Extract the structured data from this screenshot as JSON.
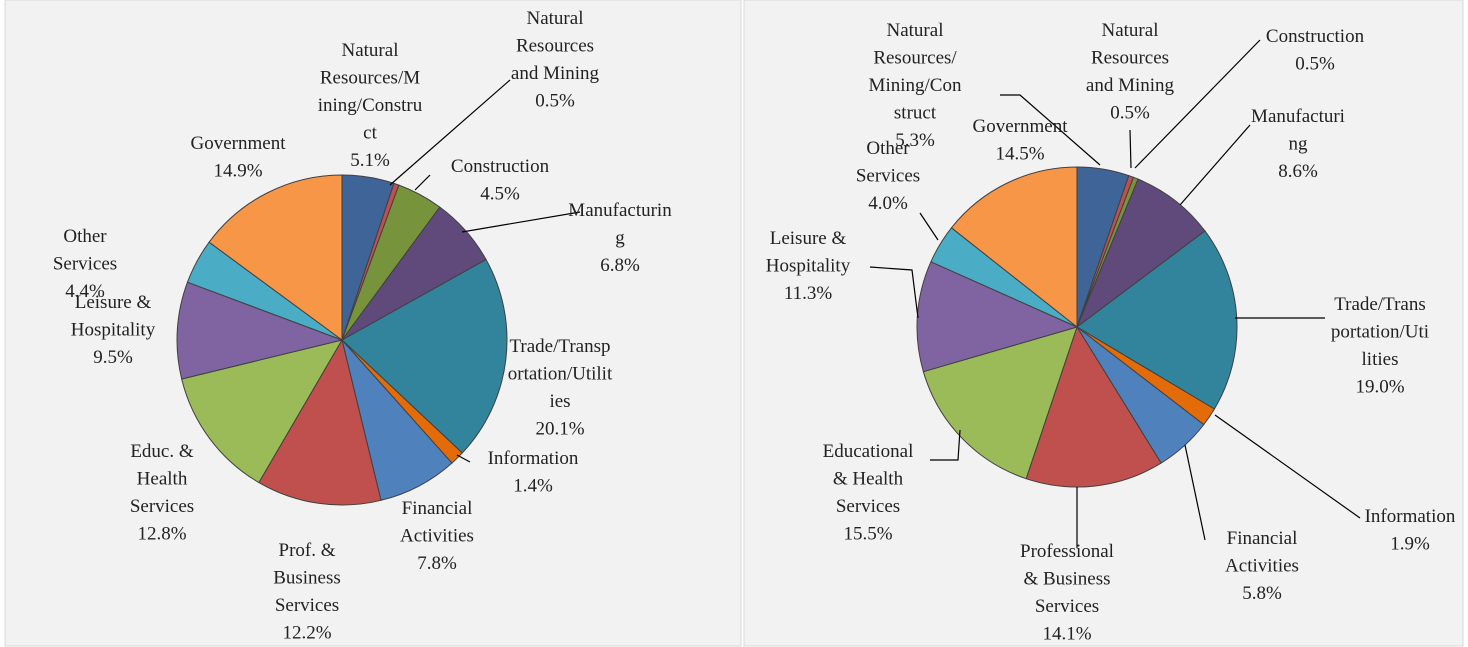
{
  "chart_data": [
    {
      "type": "pie",
      "categories": [
        "Natural\nResources/M\nining/Constru\nct",
        "Natural\nResources\nand Mining",
        "Construction",
        "Manufacturin\ng",
        "Trade/Transp\nortation/Utilit\nies",
        "Information",
        "Financial\nActivities",
        "Prof. &\nBusiness\nServices",
        "Educ. &\nHealth\nServices",
        "Leisure &\nHospitality",
        "Other\nServices",
        "Government"
      ],
      "values": [
        5.1,
        0.5,
        4.5,
        6.8,
        20.1,
        1.4,
        7.8,
        12.2,
        12.8,
        9.5,
        4.4,
        14.9
      ],
      "value_labels": [
        "5.1%",
        "0.5%",
        "4.5%",
        "6.8%",
        "20.1%",
        "1.4%",
        "7.8%",
        "12.2%",
        "12.8%",
        "9.5%",
        "4.4%",
        "14.9%"
      ],
      "colors": [
        "#3e6498",
        "#c0504d",
        "#77933c",
        "#604a7b",
        "#31849b",
        "#e36c09",
        "#4f81bd",
        "#c0504d",
        "#9bbb59",
        "#8064a2",
        "#4bacc6",
        "#f79646"
      ]
    },
    {
      "type": "pie",
      "categories": [
        "Natural\nResources/\nMining/Con\nstruct",
        "Natural\nResources\nand Mining",
        "Construction",
        "Manufacturi\nng",
        "Trade/Trans\nportation/Uti\nlities",
        "Information",
        "Financial\nActivities",
        "Professional\n& Business\nServices",
        "Educational\n& Health\nServices",
        "Leisure &\nHospitality",
        "Other\nServices",
        "Government"
      ],
      "values": [
        5.3,
        0.5,
        0.5,
        8.6,
        19.0,
        1.9,
        5.8,
        14.1,
        15.5,
        11.3,
        4.0,
        14.5
      ],
      "value_labels": [
        "5.3%",
        "0.5%",
        "0.5%",
        "8.6%",
        "19.0%",
        "1.9%",
        "5.8%",
        "14.1%",
        "15.5%",
        "11.3%",
        "4.0%",
        "14.5%"
      ],
      "colors": [
        "#3e6498",
        "#c0504d",
        "#77933c",
        "#604a7b",
        "#31849b",
        "#e36c09",
        "#4f81bd",
        "#c0504d",
        "#9bbb59",
        "#8064a2",
        "#4bacc6",
        "#f79646"
      ]
    }
  ]
}
